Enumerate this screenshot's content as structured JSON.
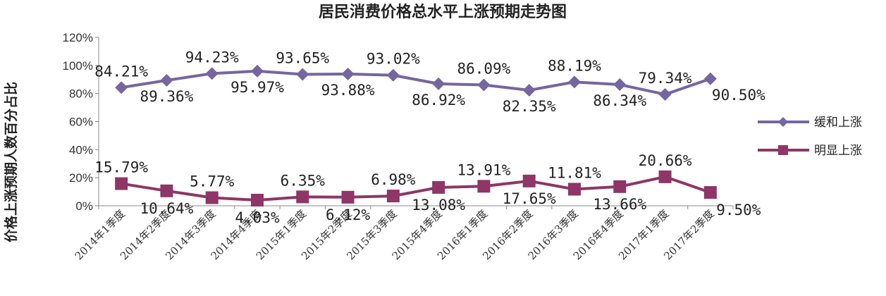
{
  "chart_data": {
    "type": "line",
    "title": "居民消费价格总水平上涨预期走势图",
    "ylabel": "价格上涨预期人数百分占比",
    "xlabel": "",
    "ylim": [
      0,
      120
    ],
    "yticks": [
      "0%",
      "20%",
      "40%",
      "60%",
      "80%",
      "100%",
      "120%"
    ],
    "grid": false,
    "legend_position": "right",
    "categories": [
      "2014年1季度",
      "2014年2季度",
      "2014年3季度",
      "2014年4季度",
      "2015年1季度",
      "2015年2季度",
      "2015年3季度",
      "2015年4季度",
      "2016年1季度",
      "2016年2季度",
      "2016年3季度",
      "2016年4季度",
      "2017年1季度",
      "2017年2季度"
    ],
    "series": [
      {
        "name": "缓和上涨",
        "color": "#7566a0",
        "marker": "diamond",
        "values": [
          84.21,
          89.36,
          94.23,
          95.97,
          93.65,
          93.88,
          93.02,
          86.92,
          86.09,
          82.35,
          88.19,
          86.34,
          79.34,
          90.5
        ],
        "labels": [
          "84.21%",
          "89.36%",
          "94.23%",
          "95.97%",
          "93.65%",
          "93.88%",
          "93.02%",
          "86.92%",
          "86.09%",
          "82.35%",
          "88.19%",
          "86.34%",
          "79.34%",
          "90.50%"
        ]
      },
      {
        "name": "明显上涨",
        "color": "#8e3667",
        "marker": "square",
        "values": [
          15.79,
          10.64,
          5.77,
          4.03,
          6.35,
          6.12,
          6.98,
          13.08,
          13.91,
          17.65,
          11.81,
          13.66,
          20.66,
          9.5
        ],
        "labels": [
          "15.79%",
          "10.64%",
          "5.77%",
          "4.03%",
          "6.35%",
          "6.12%",
          "6.98%",
          "13.08%",
          "13.91%",
          "17.65%",
          "11.81%",
          "13.66%",
          "20.66%",
          "9.50%"
        ]
      }
    ]
  }
}
